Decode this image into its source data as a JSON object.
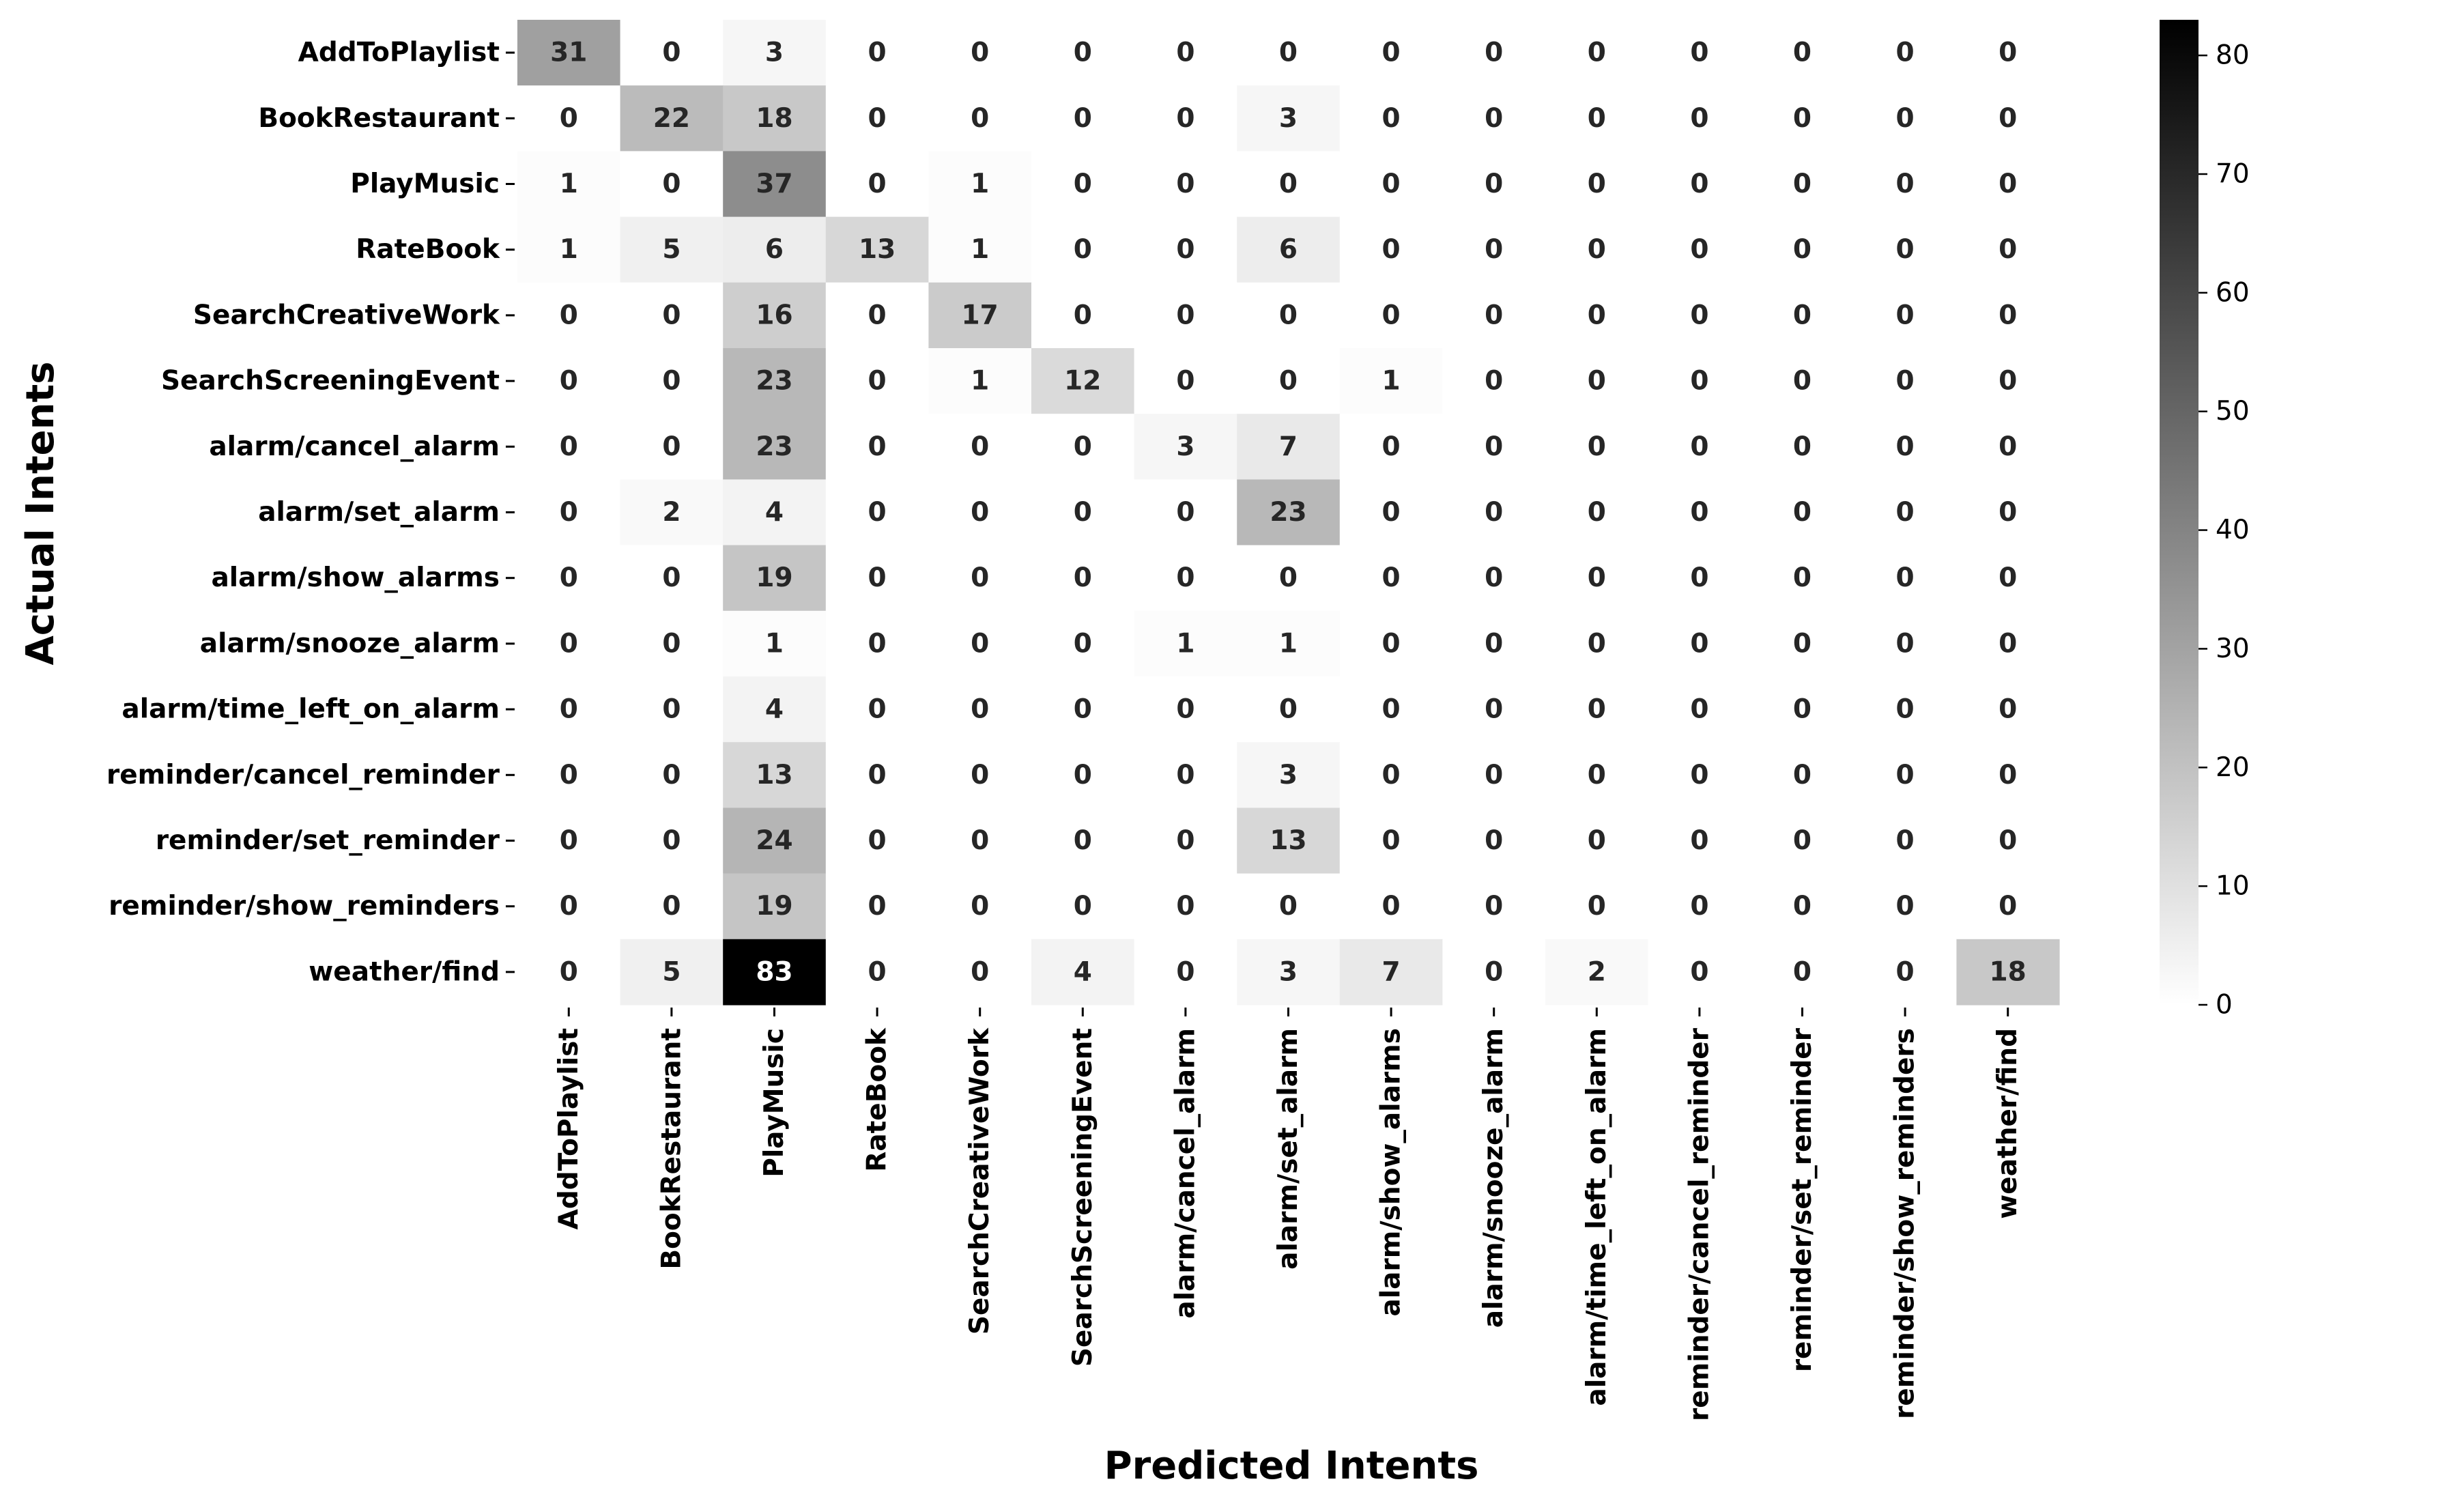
{
  "chart_data": {
    "type": "heatmap",
    "title": "",
    "xlabel": "Predicted Intents",
    "ylabel": "Actual Intents",
    "colormap": "Greys",
    "color_low": "#ffffff",
    "color_high": "#000000",
    "vmin": 0,
    "vmax": 83,
    "colorbar_ticks": [
      0,
      10,
      20,
      30,
      40,
      50,
      60,
      70,
      80
    ],
    "rows": [
      "AddToPlaylist",
      "BookRestaurant",
      "PlayMusic",
      "RateBook",
      "SearchCreativeWork",
      "SearchScreeningEvent",
      "alarm/cancel_alarm",
      "alarm/set_alarm",
      "alarm/show_alarms",
      "alarm/snooze_alarm",
      "alarm/time_left_on_alarm",
      "reminder/cancel_reminder",
      "reminder/set_reminder",
      "reminder/show_reminders",
      "weather/find"
    ],
    "columns": [
      "AddToPlaylist",
      "BookRestaurant",
      "PlayMusic",
      "RateBook",
      "SearchCreativeWork",
      "SearchScreeningEvent",
      "alarm/cancel_alarm",
      "alarm/set_alarm",
      "alarm/show_alarms",
      "alarm/snooze_alarm",
      "alarm/time_left_on_alarm",
      "reminder/cancel_reminder",
      "reminder/set_reminder",
      "reminder/show_reminders",
      "weather/find"
    ],
    "values": [
      [
        31,
        0,
        3,
        0,
        0,
        0,
        0,
        0,
        0,
        0,
        0,
        0,
        0,
        0,
        0
      ],
      [
        0,
        22,
        18,
        0,
        0,
        0,
        0,
        3,
        0,
        0,
        0,
        0,
        0,
        0,
        0
      ],
      [
        1,
        0,
        37,
        0,
        1,
        0,
        0,
        0,
        0,
        0,
        0,
        0,
        0,
        0,
        0
      ],
      [
        1,
        5,
        6,
        13,
        1,
        0,
        0,
        6,
        0,
        0,
        0,
        0,
        0,
        0,
        0
      ],
      [
        0,
        0,
        16,
        0,
        17,
        0,
        0,
        0,
        0,
        0,
        0,
        0,
        0,
        0,
        0
      ],
      [
        0,
        0,
        23,
        0,
        1,
        12,
        0,
        0,
        1,
        0,
        0,
        0,
        0,
        0,
        0
      ],
      [
        0,
        0,
        23,
        0,
        0,
        0,
        3,
        7,
        0,
        0,
        0,
        0,
        0,
        0,
        0
      ],
      [
        0,
        2,
        4,
        0,
        0,
        0,
        0,
        23,
        0,
        0,
        0,
        0,
        0,
        0,
        0
      ],
      [
        0,
        0,
        19,
        0,
        0,
        0,
        0,
        0,
        0,
        0,
        0,
        0,
        0,
        0,
        0
      ],
      [
        0,
        0,
        1,
        0,
        0,
        0,
        1,
        1,
        0,
        0,
        0,
        0,
        0,
        0,
        0
      ],
      [
        0,
        0,
        4,
        0,
        0,
        0,
        0,
        0,
        0,
        0,
        0,
        0,
        0,
        0,
        0
      ],
      [
        0,
        0,
        13,
        0,
        0,
        0,
        0,
        3,
        0,
        0,
        0,
        0,
        0,
        0,
        0
      ],
      [
        0,
        0,
        24,
        0,
        0,
        0,
        0,
        13,
        0,
        0,
        0,
        0,
        0,
        0,
        0
      ],
      [
        0,
        0,
        19,
        0,
        0,
        0,
        0,
        0,
        0,
        0,
        0,
        0,
        0,
        0,
        0
      ],
      [
        0,
        5,
        83,
        0,
        0,
        4,
        0,
        3,
        7,
        0,
        2,
        0,
        0,
        0,
        18
      ]
    ]
  }
}
